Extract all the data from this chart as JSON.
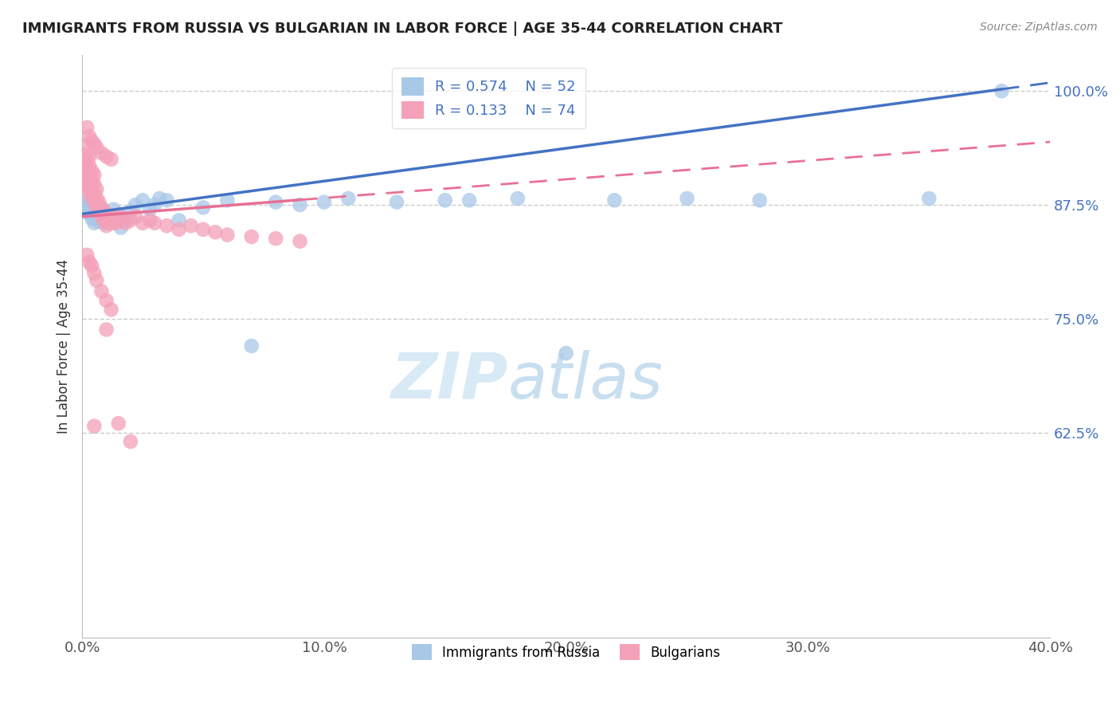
{
  "title": "IMMIGRANTS FROM RUSSIA VS BULGARIAN IN LABOR FORCE | AGE 35-44 CORRELATION CHART",
  "source": "Source: ZipAtlas.com",
  "xlabel": "",
  "ylabel": "In Labor Force | Age 35-44",
  "xlim": [
    0.0,
    0.4
  ],
  "ylim": [
    0.4,
    1.04
  ],
  "yticks": [
    1.0,
    0.875,
    0.75,
    0.625
  ],
  "ytick_labels": [
    "100.0%",
    "87.5%",
    "75.0%",
    "62.5%"
  ],
  "xticks": [
    0.0,
    0.1,
    0.2,
    0.3,
    0.4
  ],
  "xtick_labels": [
    "0.0%",
    "10.0%",
    "20.0%",
    "30.0%",
    "40.0%"
  ],
  "russia_R": 0.574,
  "russia_N": 52,
  "bulgaria_R": 0.133,
  "bulgaria_N": 74,
  "russia_color": "#a8c8e8",
  "bulgaria_color": "#f4a0b8",
  "russia_line_color": "#4472c4",
  "bulgaria_line_color": "#e87095",
  "background_color": "#ffffff",
  "russia_x": [
    0.001,
    0.001,
    0.002,
    0.002,
    0.002,
    0.003,
    0.003,
    0.003,
    0.004,
    0.004,
    0.005,
    0.005,
    0.005,
    0.006,
    0.006,
    0.007,
    0.007,
    0.008,
    0.008,
    0.009,
    0.01,
    0.01,
    0.012,
    0.013,
    0.015,
    0.016,
    0.018,
    0.02,
    0.022,
    0.025,
    0.028,
    0.03,
    0.032,
    0.035,
    0.04,
    0.05,
    0.06,
    0.07,
    0.08,
    0.09,
    0.1,
    0.11,
    0.13,
    0.15,
    0.16,
    0.18,
    0.2,
    0.22,
    0.25,
    0.28,
    0.35,
    0.38
  ],
  "russia_y": [
    0.87,
    0.875,
    0.868,
    0.872,
    0.88,
    0.865,
    0.87,
    0.878,
    0.86,
    0.875,
    0.855,
    0.862,
    0.87,
    0.858,
    0.868,
    0.86,
    0.872,
    0.856,
    0.862,
    0.858,
    0.855,
    0.865,
    0.862,
    0.87,
    0.865,
    0.85,
    0.86,
    0.868,
    0.875,
    0.88,
    0.87,
    0.875,
    0.882,
    0.88,
    0.858,
    0.872,
    0.88,
    0.72,
    0.878,
    0.875,
    0.878,
    0.882,
    0.878,
    0.88,
    0.88,
    0.882,
    0.712,
    0.88,
    0.882,
    0.88,
    0.882,
    1.0
  ],
  "bulgaria_x": [
    0.001,
    0.001,
    0.001,
    0.001,
    0.001,
    0.002,
    0.002,
    0.002,
    0.002,
    0.003,
    0.003,
    0.003,
    0.003,
    0.003,
    0.004,
    0.004,
    0.004,
    0.004,
    0.005,
    0.005,
    0.005,
    0.005,
    0.006,
    0.006,
    0.006,
    0.007,
    0.007,
    0.008,
    0.008,
    0.009,
    0.009,
    0.01,
    0.01,
    0.011,
    0.012,
    0.013,
    0.014,
    0.015,
    0.016,
    0.018,
    0.02,
    0.022,
    0.025,
    0.028,
    0.03,
    0.035,
    0.04,
    0.045,
    0.05,
    0.055,
    0.06,
    0.07,
    0.08,
    0.09,
    0.002,
    0.003,
    0.004,
    0.005,
    0.006,
    0.008,
    0.01,
    0.012,
    0.002,
    0.003,
    0.004,
    0.005,
    0.006,
    0.008,
    0.01,
    0.012,
    0.015,
    0.02,
    0.005,
    0.01
  ],
  "bulgaria_y": [
    0.9,
    0.912,
    0.92,
    0.93,
    0.94,
    0.895,
    0.905,
    0.915,
    0.925,
    0.888,
    0.898,
    0.908,
    0.918,
    0.928,
    0.882,
    0.892,
    0.902,
    0.912,
    0.878,
    0.888,
    0.898,
    0.908,
    0.872,
    0.882,
    0.892,
    0.868,
    0.878,
    0.862,
    0.872,
    0.858,
    0.868,
    0.852,
    0.862,
    0.858,
    0.855,
    0.862,
    0.855,
    0.858,
    0.862,
    0.855,
    0.858,
    0.862,
    0.855,
    0.858,
    0.855,
    0.852,
    0.848,
    0.852,
    0.848,
    0.845,
    0.842,
    0.84,
    0.838,
    0.835,
    0.96,
    0.95,
    0.945,
    0.942,
    0.938,
    0.932,
    0.928,
    0.925,
    0.82,
    0.812,
    0.808,
    0.8,
    0.792,
    0.78,
    0.77,
    0.76,
    0.635,
    0.615,
    0.632,
    0.738
  ]
}
